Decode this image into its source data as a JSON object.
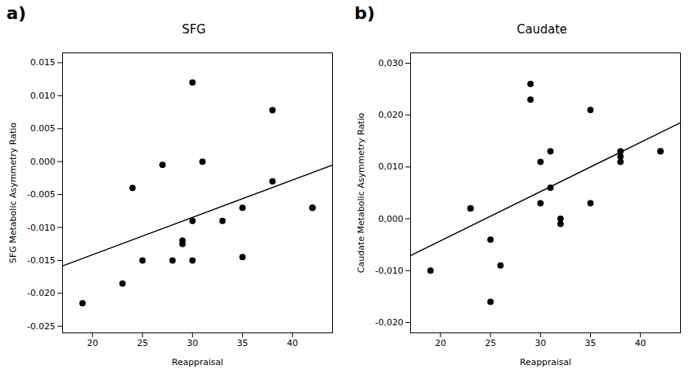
{
  "chart_data": [
    {
      "type": "scatter",
      "title": "SFG",
      "x_label": "Reappraisal",
      "y_label": "SFG Metabolic Asymmetry Ratio",
      "annotations": [
        "a)"
      ],
      "series": [
        {
          "type": "scatter",
          "color": "#000000",
          "x": [
            19,
            23,
            24,
            25,
            27,
            28,
            29,
            29,
            30,
            30,
            30,
            31,
            33,
            35,
            35,
            38,
            38,
            42,
            42
          ],
          "values": [
            -0.0215,
            -0.0185,
            -0.004,
            -0.015,
            -0.0005,
            -0.015,
            -0.012,
            -0.0125,
            0.012,
            -0.009,
            -0.015,
            0.0,
            -0.009,
            -0.0145,
            -0.007,
            -0.003,
            0.0078,
            -0.007,
            -0.007
          ]
        },
        {
          "type": "line",
          "color": "#000000",
          "x": [
            17,
            44
          ],
          "values": [
            -0.015839,
            -0.000531
          ]
        }
      ],
      "xlim": [
        17,
        44
      ],
      "ylim": [
        -0.026,
        0.0165
      ],
      "xticks": [
        20,
        25,
        30,
        35,
        40
      ],
      "yticks": [
        {
          "value": -0.025,
          "label": "-0.025"
        },
        {
          "value": -0.02,
          "label": "-0.020"
        },
        {
          "value": -0.015,
          "label": "-0.015"
        },
        {
          "value": -0.01,
          "label": "-0.010"
        },
        {
          "value": -0.005,
          "label": "-0.005"
        },
        {
          "value": 0,
          "label": "0.000"
        },
        {
          "value": 0.005,
          "label": "0.005"
        },
        {
          "value": 0.01,
          "label": "0.010"
        },
        {
          "value": 0.015,
          "label": "0.015"
        }
      ],
      "grid": false
    },
    {
      "type": "scatter",
      "title": "Caudate",
      "x_label": "Reappraisal",
      "y_label": "Caudate Metabolic Asymmetry Ratio",
      "annotations": [
        "b)"
      ],
      "series": [
        {
          "type": "scatter",
          "color": "#000000",
          "x": [
            19,
            23,
            23,
            25,
            25,
            26,
            29,
            29,
            30,
            30,
            31,
            31,
            32,
            32,
            35,
            35,
            38,
            38,
            38,
            42,
            42
          ],
          "values": [
            -0.01,
            0.002,
            0.002,
            -0.004,
            -0.016,
            -0.009,
            0.026,
            0.023,
            0.011,
            0.003,
            0.013,
            0.006,
            0.0,
            -0.001,
            0.021,
            0.003,
            0.013,
            0.012,
            0.011,
            0.013,
            0.013
          ]
        },
        {
          "type": "line",
          "color": "#000000",
          "x": [
            17,
            44
          ],
          "values": [
            -0.0071,
            0.018541
          ]
        }
      ],
      "xlim": [
        17,
        44
      ],
      "ylim": [
        -0.022,
        0.032
      ],
      "xticks": [
        20,
        25,
        30,
        35,
        40
      ],
      "yticks": [
        {
          "value": -0.02,
          "label": "-0,020"
        },
        {
          "value": -0.01,
          "label": "-0,010"
        },
        {
          "value": 0,
          "label": "0,000"
        },
        {
          "value": 0.01,
          "label": "0,010"
        },
        {
          "value": 0.02,
          "label": "0,020"
        },
        {
          "value": 0.03,
          "label": "0,030"
        }
      ],
      "grid": false
    }
  ]
}
